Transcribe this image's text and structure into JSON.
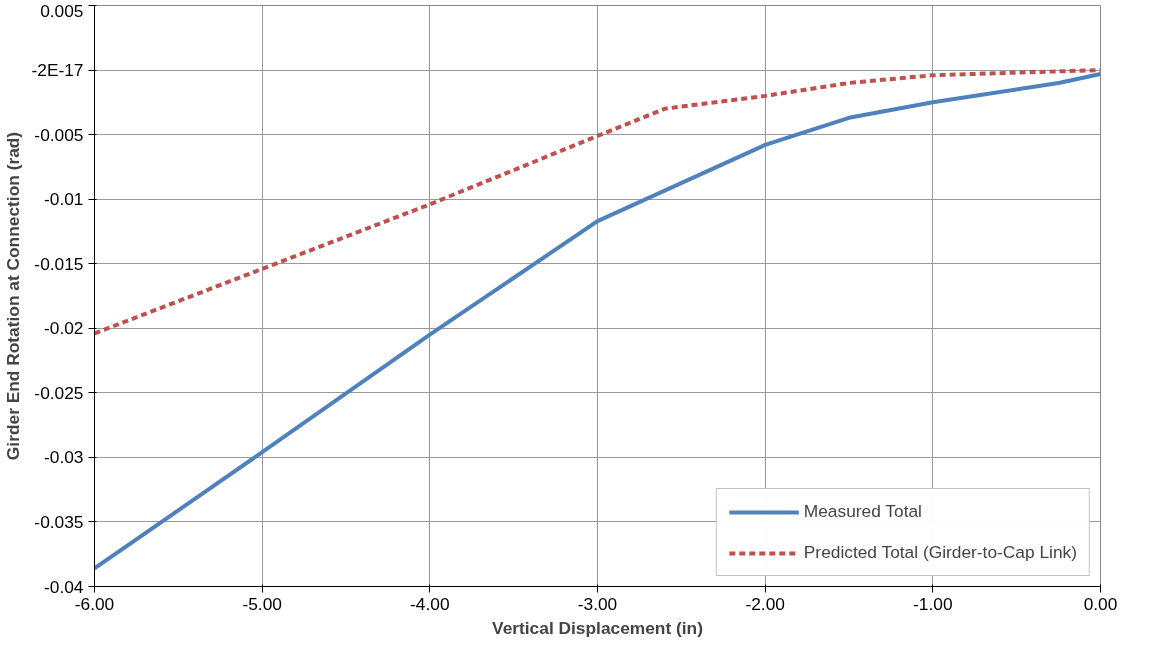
{
  "chart_data": {
    "type": "line",
    "xlabel": "Vertical Displacement (in)",
    "ylabel": "Girder End Rotation at Connection (rad)",
    "xlim": [
      -6,
      0
    ],
    "xticks": [
      {
        "value": -6,
        "label": "-6.00"
      },
      {
        "value": -5,
        "label": "-5.00"
      },
      {
        "value": -4,
        "label": "-4.00"
      },
      {
        "value": -3,
        "label": "-3.00"
      },
      {
        "value": -2,
        "label": "-2.00"
      },
      {
        "value": -1,
        "label": "-1.00"
      },
      {
        "value": 0,
        "label": "0.00"
      }
    ],
    "ylim": [
      -0.04,
      0.005
    ],
    "yticks": [
      -0.04,
      -0.035,
      -0.03,
      -0.025,
      -0.02,
      -0.015,
      -0.01,
      -0.005,
      {
        "value": 0,
        "label": "-2E-17"
      },
      0.005
    ],
    "grid": true,
    "legend": "bottom right",
    "marker": "none",
    "series": [
      {
        "name": "Measured Total",
        "color": "#4f81bd",
        "line_style": "solid",
        "x": [
          -6,
          -5,
          -4,
          -3,
          -2,
          -1.5,
          -1,
          -0.25,
          0
        ],
        "values": [
          -0.0386,
          -0.0296,
          -0.0205,
          -0.0117,
          -0.0058,
          -0.0037,
          -0.0025,
          -0.001,
          -0.0003
        ]
      },
      {
        "name": "Predicted Total (Girder-to-Cap Link)",
        "color": "#c0504d",
        "line_style": "dashed",
        "x": [
          -6,
          -5,
          -4,
          -3,
          -2.6,
          -2,
          -1.5,
          -1,
          0
        ],
        "values": [
          -0.0204,
          -0.0154,
          -0.0104,
          -0.0051,
          -0.003,
          -0.002,
          -0.001,
          -0.0004,
          0.0
        ]
      }
    ]
  }
}
